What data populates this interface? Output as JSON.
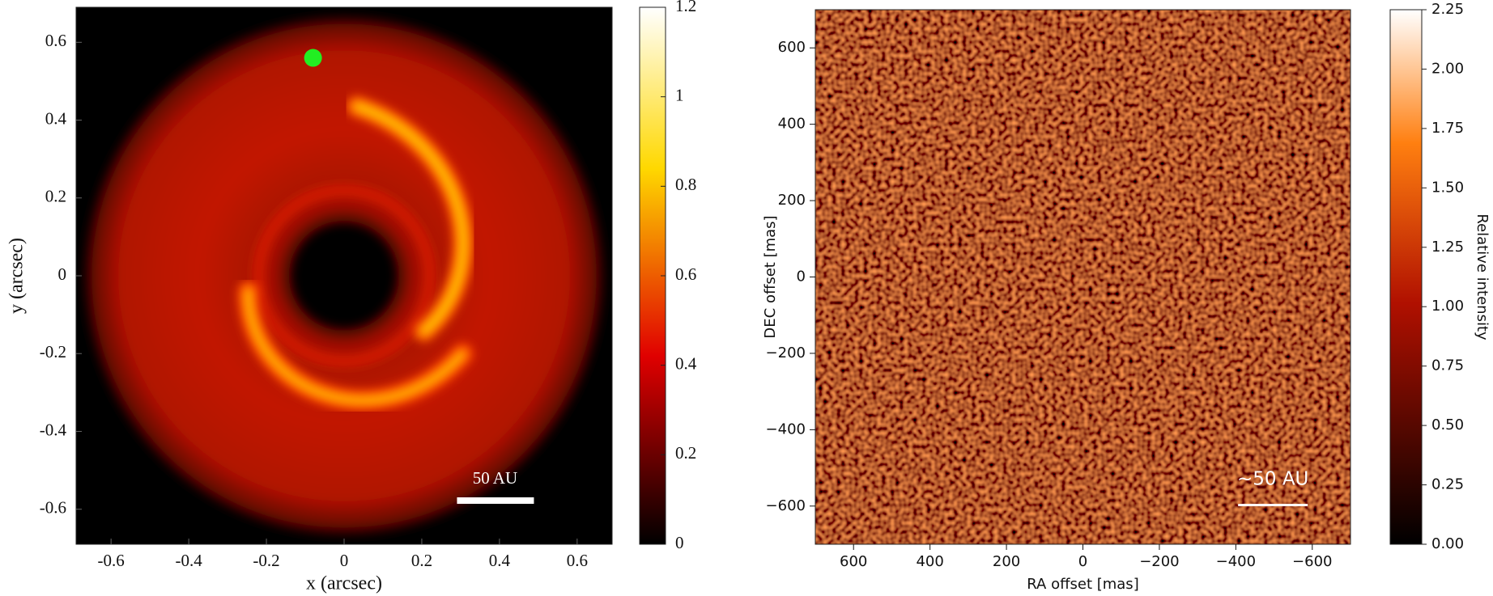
{
  "chart_data": [
    {
      "type": "image",
      "xlabel": "x (arcsec)",
      "ylabel": "y (arcsec)",
      "xlim": [
        -0.69,
        0.69
      ],
      "ylim": [
        -0.69,
        0.69
      ],
      "xticks": [
        -0.6,
        -0.4,
        -0.2,
        0,
        0.2,
        0.4,
        0.6
      ],
      "yticks": [
        -0.6,
        -0.4,
        -0.2,
        0,
        0.2,
        0.4,
        0.6
      ],
      "colormap": "hot",
      "clim": [
        0,
        1.2
      ],
      "cticks": [
        0,
        0.2,
        0.4,
        0.6,
        0.8,
        1,
        1.2
      ],
      "annotation": "50 AU",
      "marker": {
        "x": -0.08,
        "y": 0.56,
        "color": "#22ee22"
      }
    },
    {
      "type": "image",
      "xlabel": "RA offset [mas]",
      "ylabel": "DEC offset [mas]",
      "xlim": [
        700,
        -700
      ],
      "ylim": [
        -700,
        700
      ],
      "xticks": [
        600,
        400,
        200,
        0,
        {
          "value": -200,
          "label": "−200"
        },
        {
          "value": -400,
          "label": "−400"
        },
        {
          "value": -600,
          "label": "−600"
        }
      ],
      "yticks": [
        {
          "value": -600,
          "label": "−600"
        },
        {
          "value": -400,
          "label": "−400"
        },
        {
          "value": -200,
          "label": "−200"
        },
        0,
        200,
        400,
        600
      ],
      "colormap": "gist_heat",
      "clim": [
        0,
        2.25
      ],
      "clabel": "Relative intensity",
      "cticks": [
        {
          "value": 0,
          "label": "0.00"
        },
        {
          "value": 0.25,
          "label": "0.25"
        },
        {
          "value": 0.5,
          "label": "0.50"
        },
        {
          "value": 0.75,
          "label": "0.75"
        },
        {
          "value": 1,
          "label": "1.00"
        },
        {
          "value": 1.25,
          "label": "1.25"
        },
        {
          "value": 1.5,
          "label": "1.50"
        },
        {
          "value": 1.75,
          "label": "1.75"
        },
        {
          "value": 2,
          "label": "2.00"
        },
        {
          "value": 2.25,
          "label": "2.25"
        }
      ],
      "annotation": "~50 AU"
    }
  ]
}
